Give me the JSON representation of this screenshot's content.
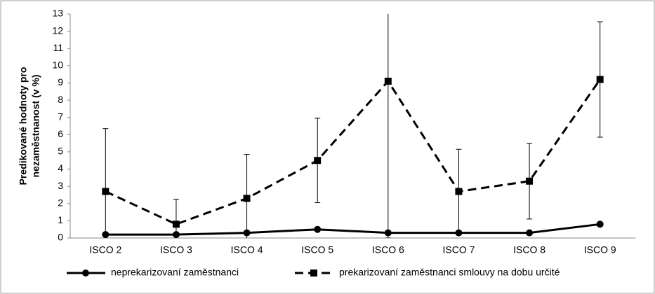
{
  "chart_data": {
    "type": "line",
    "y_label": [
      "Predikované hodnoty pro",
      "nezaměstnanost (v %)"
    ],
    "categories": [
      "ISCO 2",
      "ISCO 3",
      "ISCO 4",
      "ISCO 5",
      "ISCO 6",
      "ISCO 7",
      "ISCO 8",
      "ISCO 9"
    ],
    "series": [
      {
        "name": "neprekarizovaní zaměstnanci",
        "color": "#000000",
        "dash": false,
        "marker": "circle",
        "values": [
          0.2,
          0.2,
          0.3,
          0.5,
          0.3,
          0.3,
          0.3,
          0.8
        ]
      },
      {
        "name": "prekarizovaní zaměstnanci smlouvy na dobu určité",
        "color": "#000000",
        "dash": true,
        "marker": "square",
        "values": [
          2.7,
          0.8,
          2.3,
          4.5,
          9.1,
          2.7,
          3.3,
          9.2
        ],
        "errors": [
          3.65,
          1.45,
          2.55,
          2.45,
          9.1,
          2.45,
          2.2,
          3.35
        ]
      }
    ],
    "ylim": [
      0,
      13
    ],
    "yticks": [
      0,
      1,
      2,
      3,
      4,
      5,
      6,
      7,
      8,
      9,
      10,
      11,
      12,
      13
    ],
    "grid": false,
    "legend": "bottom"
  }
}
